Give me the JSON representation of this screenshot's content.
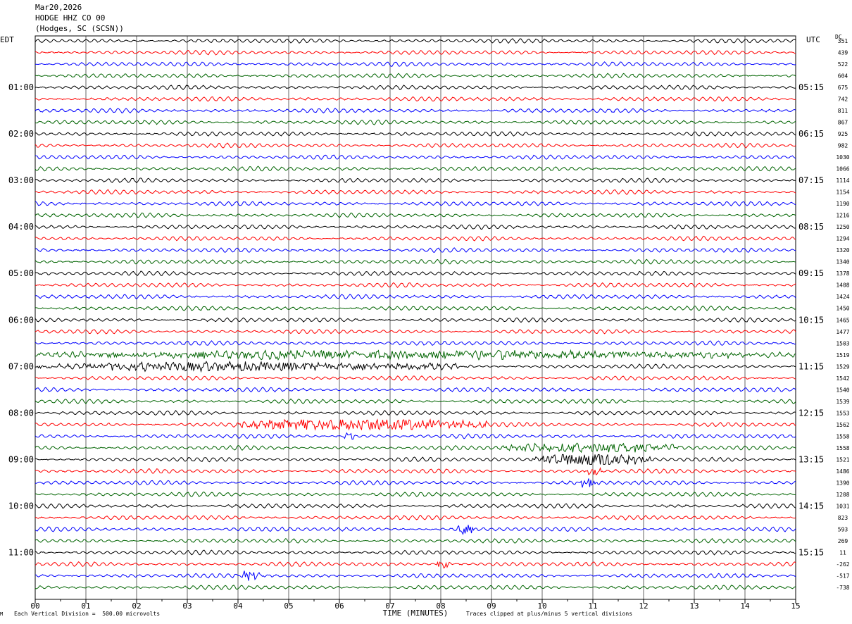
{
  "header": {
    "date": "Mar20,2026",
    "station": "HODGE HHZ CO 00",
    "location": "(Hodges, SC (SCSN))"
  },
  "left_zone_label": "EDT",
  "right_zone_label": "UTC",
  "dc_label": "DC",
  "footer": {
    "scale_note": "Each Vertical Division =  500.00 microvolts",
    "clip_note": "Traces clipped at plus/minus 5 vertical divisions",
    "corner_mark": "M"
  },
  "chart_data": {
    "type": "line",
    "title": "",
    "xlabel": "TIME (MINUTES)",
    "ylabel": "",
    "x_ticks": [
      "00",
      "01",
      "02",
      "03",
      "04",
      "05",
      "06",
      "07",
      "08",
      "09",
      "10",
      "11",
      "12",
      "13",
      "14",
      "15"
    ],
    "xlim": [
      0,
      15
    ],
    "grid": true,
    "trace_colors": [
      "#000000",
      "#ff0000",
      "#0000ff",
      "#006400"
    ],
    "left_time_labels": [
      "01:00",
      "02:00",
      "03:00",
      "04:00",
      "05:00",
      "06:00",
      "07:00",
      "08:00",
      "09:00",
      "10:00",
      "11:00"
    ],
    "right_time_labels": [
      "05:15",
      "06:15",
      "07:15",
      "08:15",
      "09:15",
      "10:15",
      "11:15",
      "12:15",
      "13:15",
      "14:15",
      "15:15"
    ],
    "dc_offsets": [
      "351",
      "439",
      "522",
      "604",
      "675",
      "742",
      "811",
      "867",
      "925",
      "982",
      "1030",
      "1066",
      "1114",
      "1154",
      "1190",
      "1216",
      "1250",
      "1294",
      "1320",
      "1340",
      "1378",
      "1408",
      "1424",
      "1450",
      "1465",
      "1477",
      "1503",
      "1519",
      "1529",
      "1542",
      "1540",
      "1539",
      "1553",
      "1562",
      "1558",
      "1558",
      "1521",
      "1486",
      "1390",
      "1208",
      "1031",
      "823",
      "593",
      "269",
      "11",
      "-262",
      "-517",
      "-738"
    ],
    "events": [
      {
        "trace": 27,
        "start_min": 0,
        "end_min": 15,
        "amplitude": 1.6
      },
      {
        "trace": 28,
        "start_min": 0,
        "end_min": 8.5,
        "amplitude": 1.8
      },
      {
        "trace": 33,
        "start_min": 3.9,
        "end_min": 8.9,
        "amplitude": 2.6
      },
      {
        "trace": 34,
        "start_min": 6.1,
        "end_min": 6.3,
        "amplitude": 2.0
      },
      {
        "trace": 35,
        "start_min": 9.2,
        "end_min": 12.8,
        "amplitude": 2.0
      },
      {
        "trace": 36,
        "start_min": 9.8,
        "end_min": 12.2,
        "amplitude": 3.2
      },
      {
        "trace": 37,
        "start_min": 10.8,
        "end_min": 11.2,
        "amplitude": 1.6
      },
      {
        "trace": 38,
        "start_min": 10.7,
        "end_min": 11.1,
        "amplitude": 2.0
      },
      {
        "trace": 42,
        "start_min": 8.3,
        "end_min": 8.7,
        "amplitude": 2.2
      },
      {
        "trace": 45,
        "start_min": 7.9,
        "end_min": 8.2,
        "amplitude": 1.6
      },
      {
        "trace": 46,
        "start_min": 4.0,
        "end_min": 4.5,
        "amplitude": 1.8
      }
    ]
  }
}
